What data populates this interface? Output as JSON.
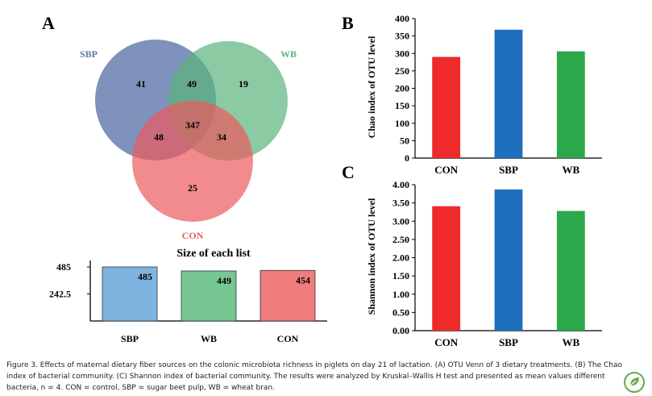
{
  "panel_labels": [
    "A",
    "B",
    "C"
  ],
  "caption": "Figure 3. Effects of maternal dietary fiber sources on the colonic microbiota richness in piglets on day 21 of lactation. (A) OTU Venn of 3 dietary treatments. (B) The Chao index of bacterial community. (C) Shannon index of bacterial community. The results were analyzed by Kruskal–Wallis H test and presented as mean values different bacteria, n = 4. CON = control, SBP = sugar beet pulp, WB = wheat bran.",
  "colors": {
    "SBP": "#1f6fbf",
    "CON": "#ee2a2a",
    "WB": "#2ba84a"
  },
  "chart_data": [
    {
      "type": "venn",
      "sets": [
        {
          "name": "SBP",
          "color": "#5b73a8"
        },
        {
          "name": "WB",
          "color": "#5ab47a"
        },
        {
          "name": "CON",
          "color": "#ec5a5e"
        }
      ],
      "regions": [
        {
          "sets": [
            "SBP"
          ],
          "value": 41
        },
        {
          "sets": [
            "SBP",
            "WB"
          ],
          "value": 49
        },
        {
          "sets": [
            "WB"
          ],
          "value": 19
        },
        {
          "sets": [
            "SBP",
            "CON"
          ],
          "value": 48
        },
        {
          "sets": [
            "SBP",
            "WB",
            "CON"
          ],
          "value": 347
        },
        {
          "sets": [
            "WB",
            "CON"
          ],
          "value": 34
        },
        {
          "sets": [
            "CON"
          ],
          "value": 25
        }
      ]
    },
    {
      "type": "bar",
      "title": "Size of each list",
      "categories": [
        "SBP",
        "WB",
        "CON"
      ],
      "values": [
        485,
        449,
        454
      ],
      "colors": [
        "#7fb4e0",
        "#76c791",
        "#f07c7e"
      ],
      "yticks": [
        "485",
        "242.5"
      ],
      "ylim": [
        0,
        485
      ]
    },
    {
      "type": "bar",
      "ylabel": "Chao index of  OTU level",
      "categories": [
        "CON",
        "SBP",
        "WB"
      ],
      "values": [
        290,
        368,
        306
      ],
      "colors": [
        "#ee2a2a",
        "#1f6fbf",
        "#2ba84a"
      ],
      "ylim": [
        0,
        400
      ],
      "yticks": [
        "0",
        "50",
        "100",
        "150",
        "200",
        "250",
        "300",
        "350",
        "400"
      ]
    },
    {
      "type": "bar",
      "ylabel": "Shannon index of OTU level",
      "categories": [
        "CON",
        "SBP",
        "WB"
      ],
      "values": [
        3.41,
        3.87,
        3.28
      ],
      "colors": [
        "#ee2a2a",
        "#1f6fbf",
        "#2ba84a"
      ],
      "ylim": [
        0,
        4
      ],
      "yticks": [
        "0.00",
        "0.50",
        "1.00",
        "1.50",
        "2.00",
        "2.50",
        "3.00",
        "3.50",
        "4.00"
      ]
    }
  ]
}
